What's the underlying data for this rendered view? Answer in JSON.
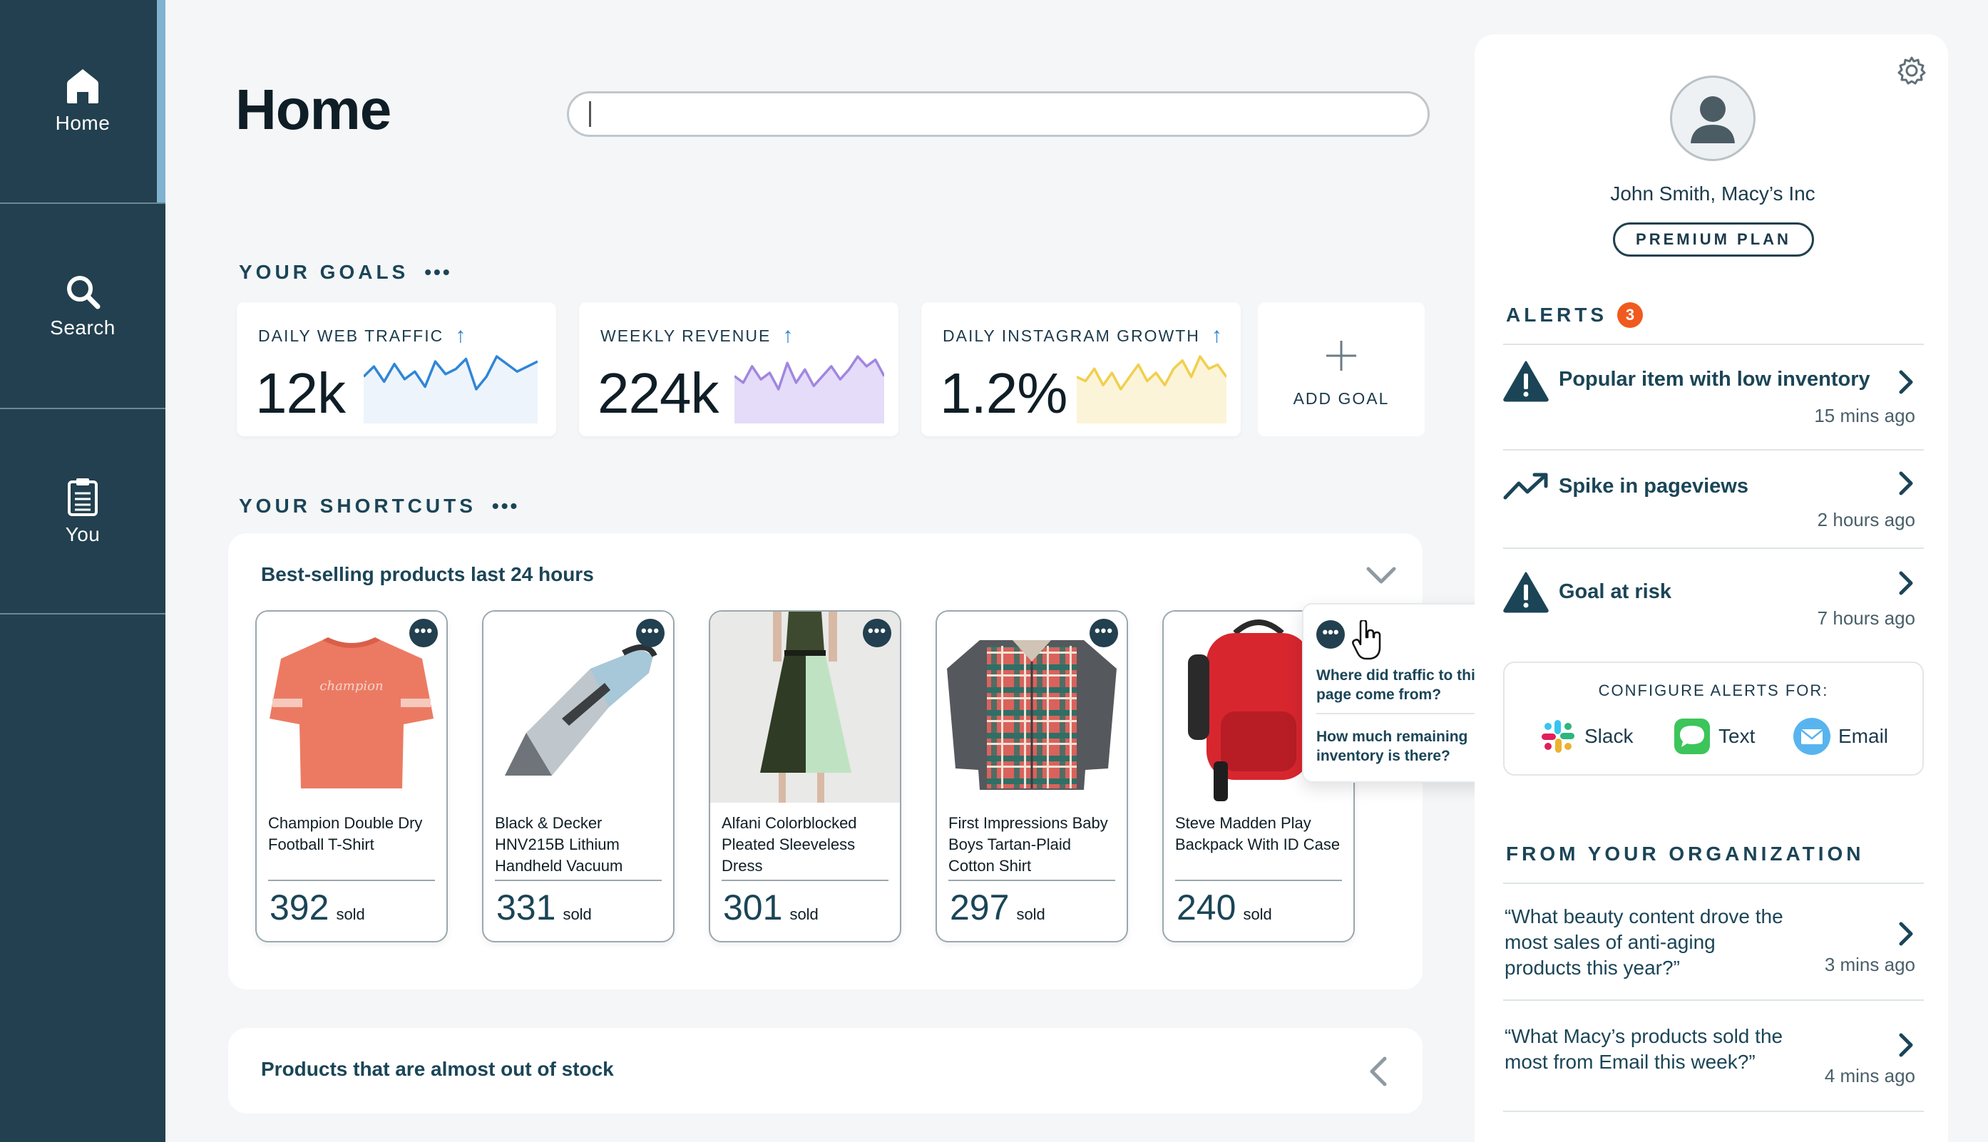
{
  "sidebar": {
    "items": [
      {
        "label": "Home",
        "icon": "home-icon",
        "active": true
      },
      {
        "label": "Search",
        "icon": "search-icon",
        "active": false
      },
      {
        "label": "You",
        "icon": "clipboard-icon",
        "active": false
      }
    ]
  },
  "header": {
    "title": "Home",
    "search": {
      "value": "",
      "placeholder": ""
    }
  },
  "goals": {
    "title": "YOUR GOALS",
    "menu": "•••",
    "cards": [
      {
        "label": "DAILY WEB TRAFFIC",
        "value": "12k",
        "trend": "up",
        "color": "#2f86d6",
        "fill": "#eef4fb",
        "spark": [
          14,
          10,
          16,
          9,
          15,
          12,
          18,
          8,
          13,
          11,
          7,
          19,
          14,
          6,
          9,
          12,
          10,
          8
        ]
      },
      {
        "label": "WEEKLY REVENUE",
        "value": "224k",
        "trend": "up",
        "color": "#a186e0",
        "fill": "#e4dcf8",
        "spark": [
          12,
          14,
          9,
          13,
          11,
          16,
          8,
          14,
          10,
          15,
          12,
          9,
          13,
          10,
          6,
          9,
          7,
          12
        ]
      },
      {
        "label": "DAILY INSTAGRAM GROWTH",
        "value": "1.2%",
        "trend": "up",
        "color": "#f1cf4d",
        "fill": "#fcf4d8",
        "spark": [
          12,
          13,
          10,
          14,
          11,
          15,
          12,
          9,
          13,
          11,
          14,
          10,
          8,
          12,
          7,
          10,
          9,
          12
        ]
      }
    ],
    "add_label": "ADD GOAL"
  },
  "shortcuts": {
    "title": "YOUR SHORTCUTS",
    "menu": "•••",
    "best_selling": {
      "title": "Best-selling products last 24 hours",
      "products": [
        {
          "name": "Champion Double Dry Football T-Shirt",
          "count": "392",
          "unit": "sold",
          "image": "tshirt-image"
        },
        {
          "name": "Black & Decker HNV215B Lithium Handheld Vacuum",
          "count": "331",
          "unit": "sold",
          "image": "vacuum-image"
        },
        {
          "name": "Alfani Colorblocked Pleated Sleeveless Dress",
          "count": "301",
          "unit": "sold",
          "image": "dress-image"
        },
        {
          "name": "First Impressions Baby Boys Tartan-Plaid Cotton Shirt",
          "count": "297",
          "unit": "sold",
          "image": "plaid-shirt-image"
        },
        {
          "name": "Steve Madden Play Backpack With ID Case",
          "count": "240",
          "unit": "sold",
          "image": "backpack-image"
        }
      ],
      "popup": {
        "questions": [
          "Where did traffic to this page come from?",
          "How much remaining inventory is there?"
        ]
      }
    },
    "out_of_stock": {
      "title": "Products that are almost out of stock"
    }
  },
  "profile": {
    "name": "John Smith, Macy’s Inc",
    "plan": "PREMIUM PLAN"
  },
  "alerts": {
    "title": "ALERTS",
    "count": "3",
    "items": [
      {
        "title": "Popular item with low inventory",
        "time": "15 mins ago",
        "icon": "warning-icon"
      },
      {
        "title": "Spike in pageviews",
        "time": "2 hours ago",
        "icon": "trend-up-icon"
      },
      {
        "title": "Goal at risk",
        "time": "7 hours ago",
        "icon": "warning-icon"
      }
    ],
    "configure": {
      "title": "CONFIGURE ALERTS FOR:",
      "options": [
        {
          "label": "Slack",
          "icon": "slack-icon"
        },
        {
          "label": "Text",
          "icon": "message-icon"
        },
        {
          "label": "Email",
          "icon": "email-icon"
        }
      ]
    }
  },
  "organization": {
    "title": "FROM YOUR ORGANIZATION",
    "items": [
      {
        "text": "“What beauty content drove the most sales of anti-aging products this year?”",
        "time": "3 mins ago"
      },
      {
        "text": "“What Macy’s products sold the most from Email this week?”",
        "time": "4 mins ago"
      }
    ]
  }
}
